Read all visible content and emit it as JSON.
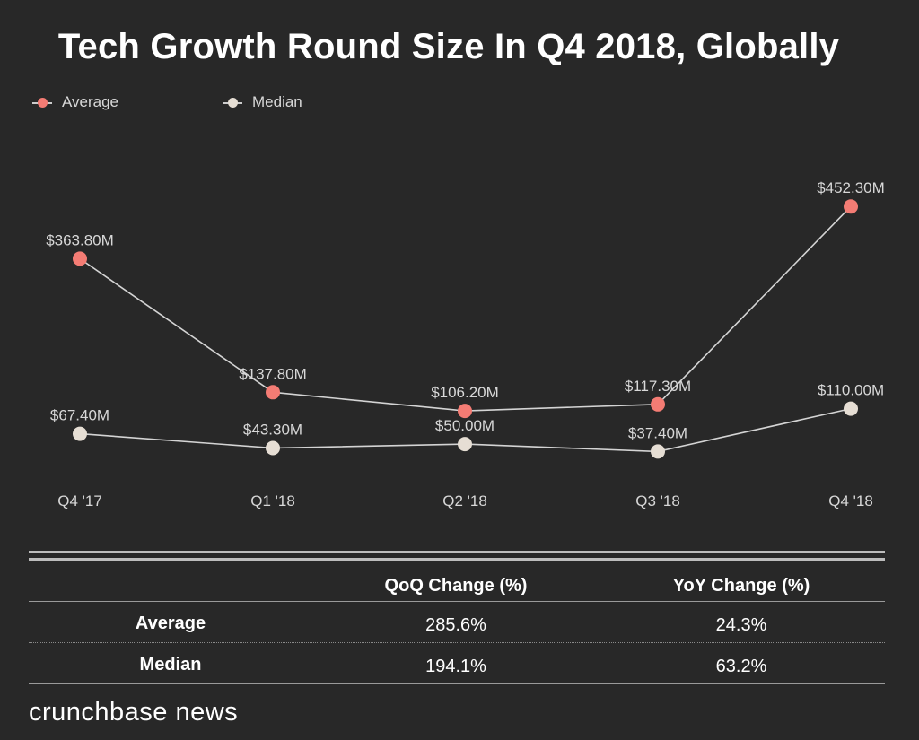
{
  "colors": {
    "average": "#f47c74",
    "median": "#e6ded4",
    "line": "#d4d4d4",
    "label": "#d8d8d8"
  },
  "chart_data": {
    "type": "line",
    "title": "Tech Growth Round Size In Q4 2018, Globally",
    "categories": [
      "Q4 '17",
      "Q1 '18",
      "Q2 '18",
      "Q3 '18",
      "Q4 '18"
    ],
    "series": [
      {
        "name": "Average",
        "values": [
          363.8,
          137.8,
          106.2,
          117.3,
          452.3
        ],
        "labels": [
          "$363.80M",
          "$137.80M",
          "$106.20M",
          "$117.30M",
          "$452.30M"
        ]
      },
      {
        "name": "Median",
        "values": [
          67.4,
          43.3,
          50.0,
          37.4,
          110.0
        ],
        "labels": [
          "$67.40M",
          "$43.30M",
          "$50.00M",
          "$37.40M",
          "$110.00M"
        ]
      }
    ],
    "xlabel": "",
    "ylabel": "",
    "legend": "top-left",
    "grid": false
  },
  "table": {
    "headers": [
      "",
      "QoQ Change (%)",
      "YoY Change (%)"
    ],
    "rows": [
      {
        "label": "Average",
        "qoq": "285.6%",
        "yoy": "24.3%"
      },
      {
        "label": "Median",
        "qoq": "194.1%",
        "yoy": "63.2%"
      }
    ]
  },
  "brand": "crunchbase news"
}
